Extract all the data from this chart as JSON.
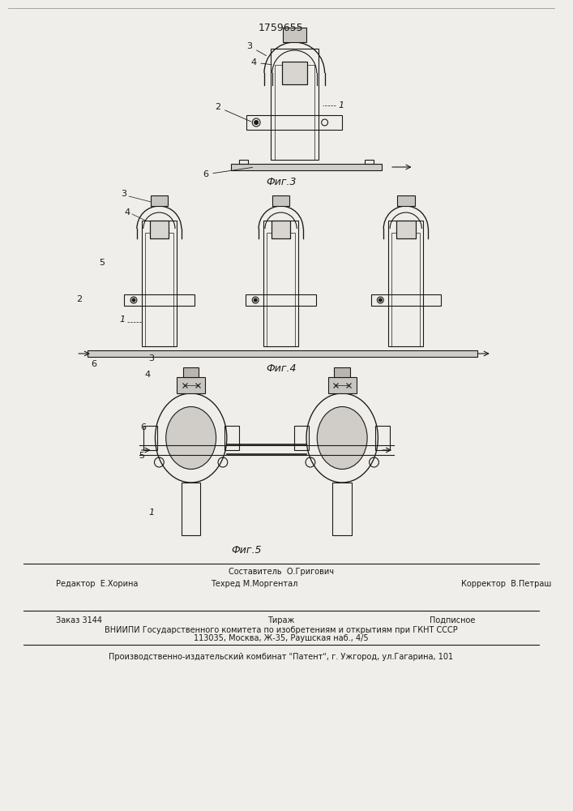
{
  "patent_number": "1759655",
  "fig3_label": "Фиг.3",
  "fig4_label": "Фиг.4",
  "fig5_label": "Фиг.5",
  "footer_line1_left": "Редактор  Е.Хорина",
  "footer_line1_center": "Составитель  О.Григович\nТехред М.Моргентал",
  "footer_line1_right": "Корректор  В.Петраш",
  "footer_line2_left": "Заказ 3144",
  "footer_line2_center": "Тираж",
  "footer_line2_right": "Подписное",
  "footer_line3": "ВНИИПИ Государственного комитета по изобретениям и открытиям при ГКНТ СССР",
  "footer_line4": "113035, Москва, Ж-35, Раушская наб., 4/5",
  "footer_line5": "Производственно-издательский комбинат \"Патент\", г. Ужгород, ул.Гагарина, 101",
  "bg_color": "#f0eeea",
  "line_color": "#1a1a1a"
}
